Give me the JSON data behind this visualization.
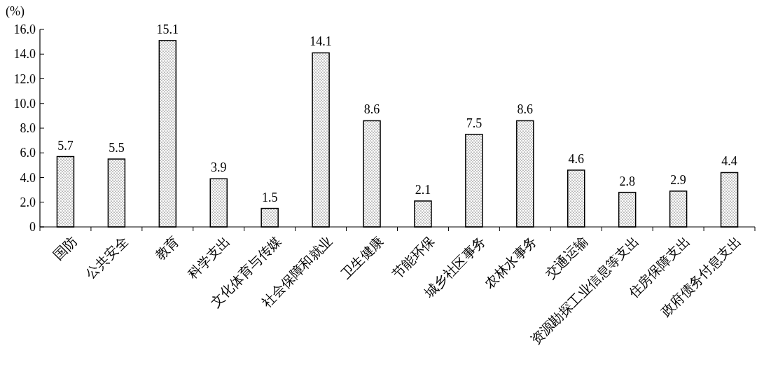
{
  "chart_data": {
    "type": "bar",
    "ylabel": "(%)",
    "categories": [
      "国防",
      "公共安全",
      "教育",
      "科学支出",
      "文化体育与传媒",
      "社会保障和就业",
      "卫生健康",
      "节能环保",
      "城乡社区事务",
      "农林水事务",
      "交通运输",
      "资源勘探工业信息等支出",
      "住房保障支出",
      "政府债务付息支出"
    ],
    "values": [
      5.7,
      5.5,
      15.1,
      3.9,
      1.5,
      14.1,
      8.6,
      2.1,
      7.5,
      8.6,
      4.6,
      2.8,
      2.9,
      4.4
    ],
    "color": "#000000",
    "ylim": [
      0,
      16
    ],
    "yticks": [
      0,
      {
        "value": 2,
        "label": "2.0"
      },
      {
        "value": 4,
        "label": "4.0"
      },
      {
        "value": 6,
        "label": "6.0"
      },
      {
        "value": 8,
        "label": "8.0"
      },
      {
        "value": 10,
        "label": "10.0"
      },
      {
        "value": 12,
        "label": "12.0"
      },
      {
        "value": 14,
        "label": "14.0"
      },
      {
        "value": 16,
        "label": "16.0"
      }
    ],
    "data_labels": true,
    "grid": false
  }
}
